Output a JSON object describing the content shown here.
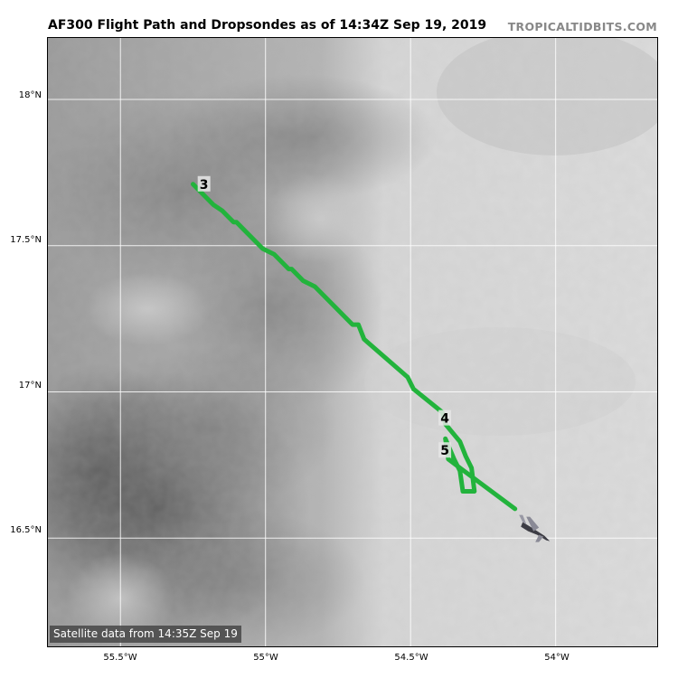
{
  "title": "AF300 Flight Path and Dropsondes as of 14:34Z Sep 19, 2019",
  "brand": "TROPICALTIDBITS.COM",
  "satellite_label": "Satellite data from 14:35Z Sep 19",
  "colors": {
    "flight_path": "#22b33c",
    "gridline": "#ffffff",
    "label_box": "#e6e6e6",
    "satellite_label_bg": "#464646"
  },
  "icons": {
    "aircraft": "aircraft-icon"
  },
  "axes": {
    "lat_labels": [
      "18°N",
      "17.5°N",
      "17°N",
      "16.5°N"
    ],
    "lon_labels": [
      "55.5°W",
      "55°W",
      "54.5°W",
      "54°W"
    ]
  },
  "dropsondes": [
    {
      "label": "3",
      "lat": 17.71,
      "lon": -55.24
    },
    {
      "label": "4",
      "lat": 16.91,
      "lon": -54.41
    },
    {
      "label": "5",
      "lat": 16.8,
      "lon": -54.41
    }
  ],
  "flight_path": [
    {
      "lat": 17.71,
      "lon": -55.25
    },
    {
      "lat": 17.64,
      "lon": -55.18
    },
    {
      "lat": 17.62,
      "lon": -55.15
    },
    {
      "lat": 17.58,
      "lon": -55.11
    },
    {
      "lat": 17.58,
      "lon": -55.1
    },
    {
      "lat": 17.49,
      "lon": -55.01
    },
    {
      "lat": 17.47,
      "lon": -54.97
    },
    {
      "lat": 17.42,
      "lon": -54.92
    },
    {
      "lat": 17.42,
      "lon": -54.91
    },
    {
      "lat": 17.38,
      "lon": -54.87
    },
    {
      "lat": 17.36,
      "lon": -54.83
    },
    {
      "lat": 17.23,
      "lon": -54.7
    },
    {
      "lat": 17.23,
      "lon": -54.68
    },
    {
      "lat": 17.18,
      "lon": -54.66
    },
    {
      "lat": 17.05,
      "lon": -54.51
    },
    {
      "lat": 17.01,
      "lon": -54.49
    },
    {
      "lat": 16.93,
      "lon": -54.39
    },
    {
      "lat": 16.89,
      "lon": -54.38
    },
    {
      "lat": 16.83,
      "lon": -54.33
    },
    {
      "lat": 16.78,
      "lon": -54.31
    },
    {
      "lat": 16.74,
      "lon": -54.29
    },
    {
      "lat": 16.66,
      "lon": -54.28
    },
    {
      "lat": 16.66,
      "lon": -54.32
    },
    {
      "lat": 16.73,
      "lon": -54.33
    },
    {
      "lat": 16.77,
      "lon": -54.35
    },
    {
      "lat": 16.84,
      "lon": -54.38
    },
    {
      "lat": 16.77,
      "lon": -54.37
    },
    {
      "lat": 16.74,
      "lon": -54.33
    },
    {
      "lat": 16.6,
      "lon": -54.14
    }
  ],
  "aircraft_position": {
    "lat": 16.53,
    "lon": -54.07
  }
}
